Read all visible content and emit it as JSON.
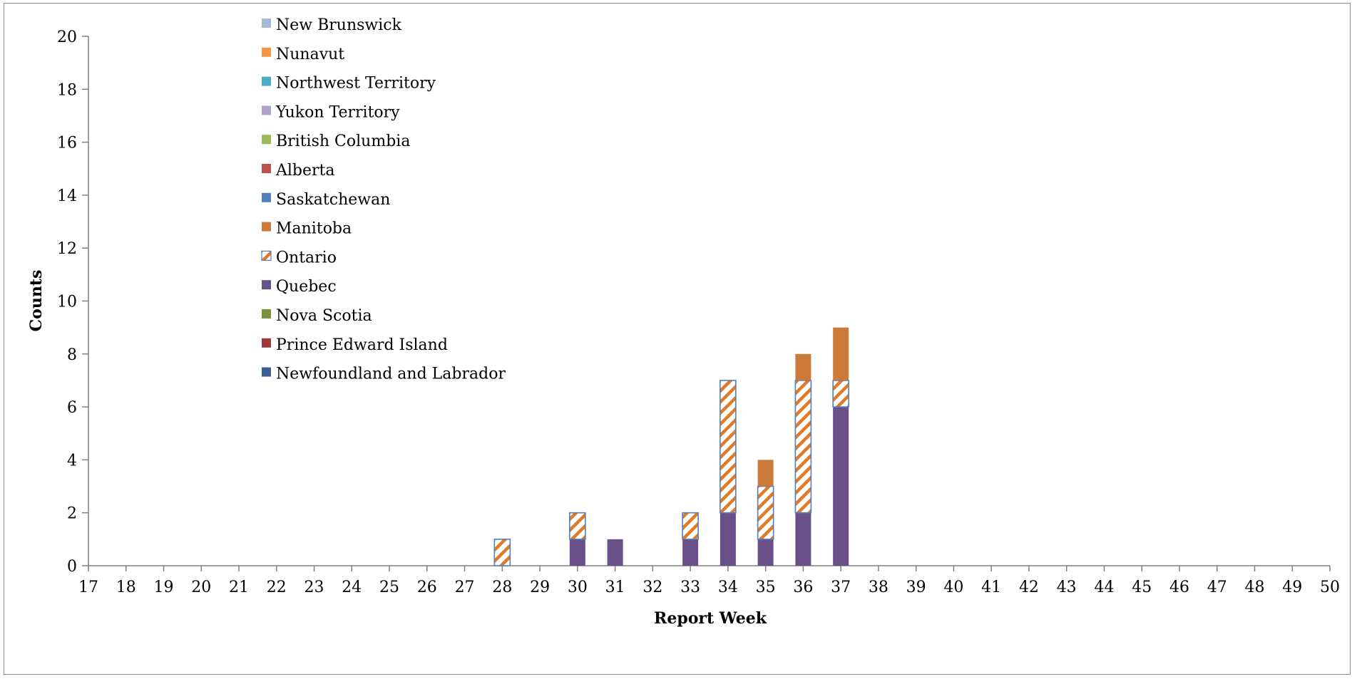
{
  "chart_data": {
    "type": "bar",
    "stacked": true,
    "title": "",
    "xlabel": "Report Week",
    "ylabel": "Counts",
    "ylim": [
      0,
      20
    ],
    "ytick_step": 2,
    "yticks": [
      "0",
      "2",
      "4",
      "6",
      "8",
      "10",
      "12",
      "14",
      "16",
      "18",
      "20"
    ],
    "categories": [
      "17",
      "18",
      "19",
      "20",
      "21",
      "22",
      "23",
      "24",
      "25",
      "26",
      "27",
      "28",
      "29",
      "30",
      "31",
      "32",
      "33",
      "34",
      "35",
      "36",
      "37",
      "38",
      "39",
      "40",
      "41",
      "42",
      "43",
      "44",
      "45",
      "46",
      "47",
      "48",
      "49",
      "50"
    ],
    "grid": false,
    "legend_position": "top-left",
    "series": [
      {
        "name": "Newfoundland and Labrador",
        "color": "#3b5f8f",
        "pattern": false,
        "values": [
          0,
          0,
          0,
          0,
          0,
          0,
          0,
          0,
          0,
          0,
          0,
          0,
          0,
          0,
          0,
          0,
          0,
          0,
          0,
          0,
          0,
          0,
          0,
          0,
          0,
          0,
          0,
          0,
          0,
          0,
          0,
          0,
          0,
          0
        ]
      },
      {
        "name": "Prince Edward Island",
        "color": "#9b3a39",
        "pattern": false,
        "values": [
          0,
          0,
          0,
          0,
          0,
          0,
          0,
          0,
          0,
          0,
          0,
          0,
          0,
          0,
          0,
          0,
          0,
          0,
          0,
          0,
          0,
          0,
          0,
          0,
          0,
          0,
          0,
          0,
          0,
          0,
          0,
          0,
          0,
          0
        ]
      },
      {
        "name": "Nova Scotia",
        "color": "#77933c",
        "pattern": false,
        "values": [
          0,
          0,
          0,
          0,
          0,
          0,
          0,
          0,
          0,
          0,
          0,
          0,
          0,
          0,
          0,
          0,
          0,
          0,
          0,
          0,
          0,
          0,
          0,
          0,
          0,
          0,
          0,
          0,
          0,
          0,
          0,
          0,
          0,
          0
        ]
      },
      {
        "name": "Quebec",
        "color": "#6a5089",
        "pattern": false,
        "values": [
          0,
          0,
          0,
          0,
          0,
          0,
          0,
          0,
          0,
          0,
          0,
          0,
          0,
          1,
          1,
          0,
          1,
          2,
          1,
          2,
          6,
          0,
          0,
          0,
          0,
          0,
          0,
          0,
          0,
          0,
          0,
          0,
          0,
          0
        ]
      },
      {
        "name": "Ontario",
        "color": "#e07a28",
        "border": "#4f81bd",
        "pattern": true,
        "values": [
          0,
          0,
          0,
          0,
          0,
          0,
          0,
          0,
          0,
          0,
          0,
          1,
          0,
          1,
          0,
          0,
          1,
          5,
          2,
          5,
          1,
          0,
          0,
          0,
          0,
          0,
          0,
          0,
          0,
          0,
          0,
          0,
          0,
          0
        ]
      },
      {
        "name": "Manitoba",
        "color": "#cc7a3a",
        "pattern": false,
        "values": [
          0,
          0,
          0,
          0,
          0,
          0,
          0,
          0,
          0,
          0,
          0,
          0,
          0,
          0,
          0,
          0,
          0,
          0,
          1,
          1,
          2,
          0,
          0,
          0,
          0,
          0,
          0,
          0,
          0,
          0,
          0,
          0,
          0,
          0
        ]
      },
      {
        "name": "Saskatchewan",
        "color": "#4f81bd",
        "pattern": false,
        "values": [
          0,
          0,
          0,
          0,
          0,
          0,
          0,
          0,
          0,
          0,
          0,
          0,
          0,
          0,
          0,
          0,
          0,
          0,
          0,
          0,
          0,
          0,
          0,
          0,
          0,
          0,
          0,
          0,
          0,
          0,
          0,
          0,
          0,
          0
        ]
      },
      {
        "name": "Alberta",
        "color": "#c0504d",
        "pattern": false,
        "values": [
          0,
          0,
          0,
          0,
          0,
          0,
          0,
          0,
          0,
          0,
          0,
          0,
          0,
          0,
          0,
          0,
          0,
          0,
          0,
          0,
          0,
          0,
          0,
          0,
          0,
          0,
          0,
          0,
          0,
          0,
          0,
          0,
          0,
          0
        ]
      },
      {
        "name": "British Columbia",
        "color": "#9bbb59",
        "pattern": false,
        "values": [
          0,
          0,
          0,
          0,
          0,
          0,
          0,
          0,
          0,
          0,
          0,
          0,
          0,
          0,
          0,
          0,
          0,
          0,
          0,
          0,
          0,
          0,
          0,
          0,
          0,
          0,
          0,
          0,
          0,
          0,
          0,
          0,
          0,
          0
        ]
      },
      {
        "name": "Yukon Territory",
        "color": "#b3a2c7",
        "pattern": false,
        "values": [
          0,
          0,
          0,
          0,
          0,
          0,
          0,
          0,
          0,
          0,
          0,
          0,
          0,
          0,
          0,
          0,
          0,
          0,
          0,
          0,
          0,
          0,
          0,
          0,
          0,
          0,
          0,
          0,
          0,
          0,
          0,
          0,
          0,
          0
        ]
      },
      {
        "name": "Northwest Territory",
        "color": "#4bacc6",
        "pattern": false,
        "values": [
          0,
          0,
          0,
          0,
          0,
          0,
          0,
          0,
          0,
          0,
          0,
          0,
          0,
          0,
          0,
          0,
          0,
          0,
          0,
          0,
          0,
          0,
          0,
          0,
          0,
          0,
          0,
          0,
          0,
          0,
          0,
          0,
          0,
          0
        ]
      },
      {
        "name": "Nunavut",
        "color": "#f79646",
        "pattern": false,
        "values": [
          0,
          0,
          0,
          0,
          0,
          0,
          0,
          0,
          0,
          0,
          0,
          0,
          0,
          0,
          0,
          0,
          0,
          0,
          0,
          0,
          0,
          0,
          0,
          0,
          0,
          0,
          0,
          0,
          0,
          0,
          0,
          0,
          0,
          0
        ]
      },
      {
        "name": "New Brunswick",
        "color": "#a5b9d6",
        "pattern": false,
        "values": [
          0,
          0,
          0,
          0,
          0,
          0,
          0,
          0,
          0,
          0,
          0,
          0,
          0,
          0,
          0,
          0,
          0,
          0,
          0,
          0,
          0,
          0,
          0,
          0,
          0,
          0,
          0,
          0,
          0,
          0,
          0,
          0,
          0,
          0
        ]
      }
    ]
  }
}
